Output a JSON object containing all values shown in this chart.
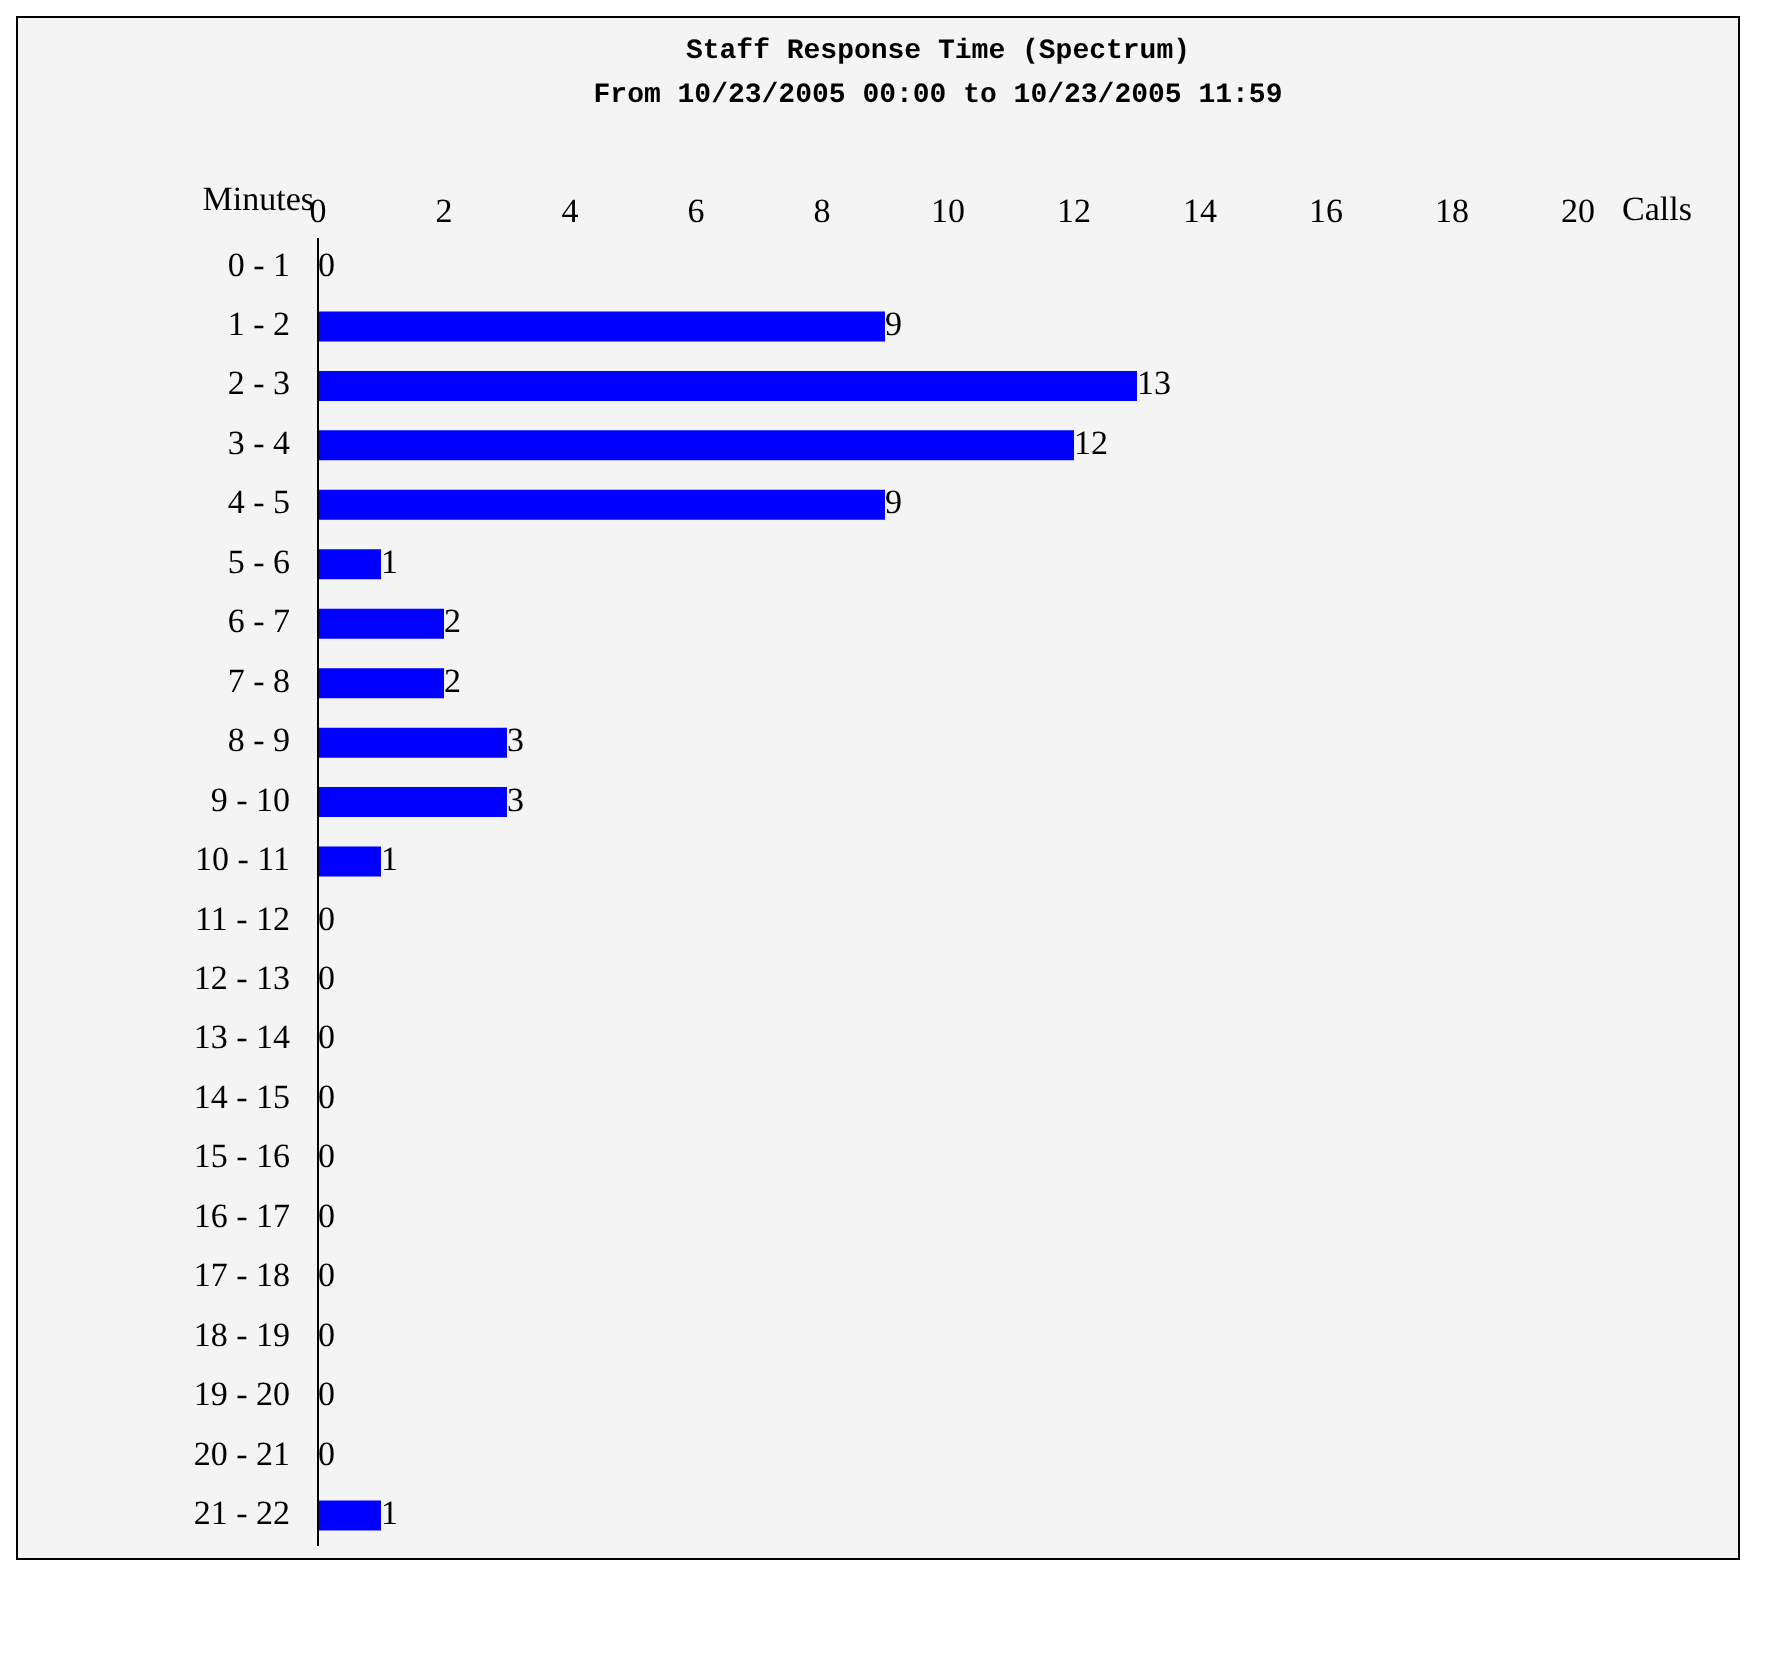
{
  "chart_data": {
    "type": "bar",
    "orientation": "horizontal",
    "title": "Staff Response Time (Spectrum)",
    "subtitle": "From 10/23/2005 00:00 to 10/23/2005 11:59",
    "ylabel": "Minutes",
    "xlabel": "Calls",
    "categories": [
      "0 - 1",
      "1 - 2",
      "2 - 3",
      "3 - 4",
      "4 - 5",
      "5 - 6",
      "6 - 7",
      "7 - 8",
      "8 - 9",
      "9 - 10",
      "10 - 11",
      "11 - 12",
      "12 - 13",
      "13 - 14",
      "14 - 15",
      "15 - 16",
      "16 - 17",
      "17 - 18",
      "18 - 19",
      "19 - 20",
      "20 - 21",
      "21 - 22"
    ],
    "values": [
      0,
      9,
      13,
      12,
      9,
      1,
      2,
      2,
      3,
      3,
      1,
      0,
      0,
      0,
      0,
      0,
      0,
      0,
      0,
      0,
      0,
      1
    ],
    "color": "#0000ff",
    "xlim": [
      0,
      20
    ],
    "xticks": [
      0,
      2,
      4,
      6,
      8,
      10,
      12,
      14,
      16,
      18,
      20
    ],
    "grid": false,
    "data_labels": true
  }
}
